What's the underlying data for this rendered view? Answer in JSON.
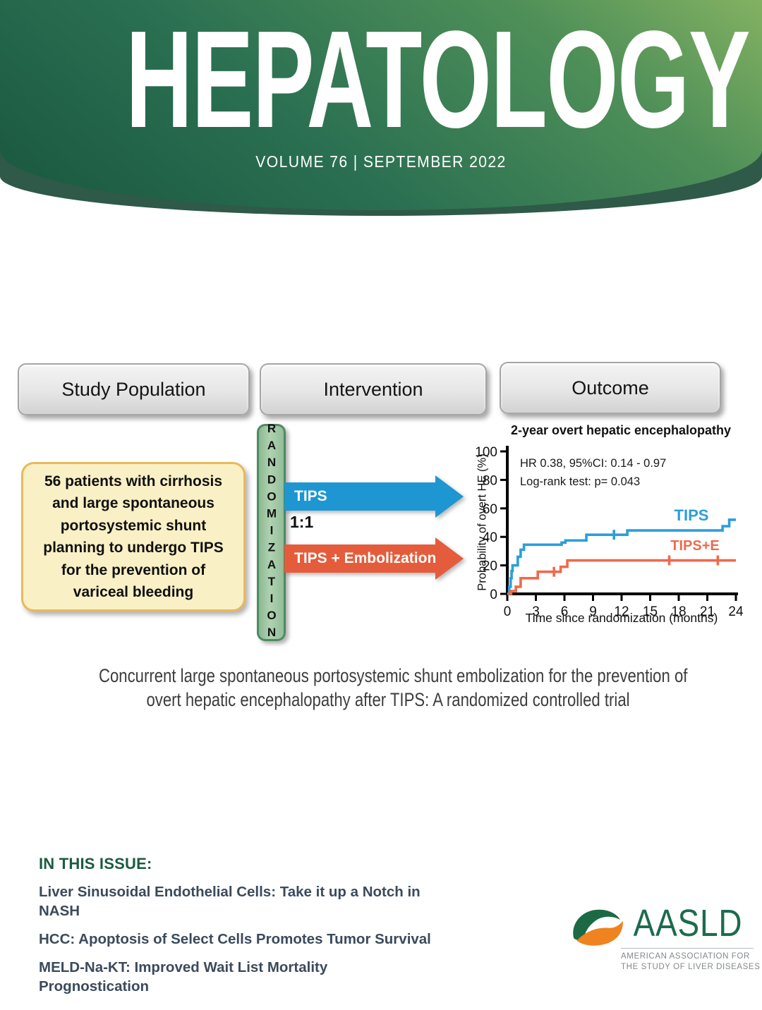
{
  "masthead": {
    "journal_title": "HEPATOLOGY",
    "issue_line": "VOLUME 76  |  SEPTEMBER 2022"
  },
  "graphical_abstract": {
    "columns": [
      "Study Population",
      "Intervention",
      "Outcome"
    ],
    "population_text": "56 patients with cirrhosis and large spontaneous portosystemic shunt planning to undergo TIPS for the prevention of variceal bleeding",
    "randomization_label": "RANDOMIZATION",
    "ratio_label": "1:1",
    "arm1_label": "TIPS",
    "arm2_label": "TIPS + Embolization",
    "colors": {
      "arm1": "#1E96D2",
      "arm2": "#E45C3C",
      "randomization_fill": "#A5C8A5",
      "population_fill": "#FAF0C6",
      "masthead_green_dark": "#19573F",
      "masthead_green_light": "#83B162"
    }
  },
  "chart_data": {
    "type": "line",
    "step": true,
    "title": "2-year overt hepatic encephalopathy",
    "annotation_lines": [
      "HR 0.38, 95%CI: 0.14 - 0.97",
      "Log-rank test: p= 0.043"
    ],
    "xlabel": "Time since randomization (months)",
    "ylabel": "Probability of overt HE (%)",
    "xlim": [
      0,
      24
    ],
    "ylim": [
      0,
      100
    ],
    "xticks": [
      0,
      3,
      6,
      9,
      12,
      15,
      18,
      21,
      24
    ],
    "yticks": [
      0,
      20,
      40,
      60,
      80,
      100
    ],
    "grid": false,
    "series": [
      {
        "name": "TIPS",
        "color": "#2B9FD9",
        "points": [
          [
            0,
            0
          ],
          [
            0.2,
            5
          ],
          [
            0.35,
            11
          ],
          [
            0.45,
            16
          ],
          [
            0.55,
            20
          ],
          [
            1.1,
            26
          ],
          [
            1.4,
            31
          ],
          [
            1.75,
            34.5
          ],
          [
            5.7,
            36
          ],
          [
            6.1,
            37.5
          ],
          [
            8.3,
            41.5
          ],
          [
            12.6,
            44.5
          ],
          [
            22.6,
            47.5
          ],
          [
            23.3,
            52
          ],
          [
            24,
            52
          ]
        ],
        "censor_marks": [
          [
            11.2,
            41.5
          ]
        ]
      },
      {
        "name": "TIPS+E",
        "color": "#EE6A4D",
        "points": [
          [
            0,
            0
          ],
          [
            0.4,
            2
          ],
          [
            0.9,
            5
          ],
          [
            1.4,
            11
          ],
          [
            3.2,
            15.5
          ],
          [
            5.6,
            19
          ],
          [
            6.3,
            23.5
          ],
          [
            24,
            23.5
          ]
        ],
        "censor_marks": [
          [
            4.9,
            15.5
          ],
          [
            17,
            23.5
          ],
          [
            22.1,
            23.5
          ]
        ]
      }
    ]
  },
  "article_title": {
    "lines": [
      "Concurrent large spontaneous portosystemic shunt embolization for the prevention of",
      "overt hepatic encephalopathy after TIPS: A randomized controlled trial"
    ]
  },
  "in_this_issue": {
    "heading": "IN THIS ISSUE:",
    "items": [
      "Liver Sinusoidal Endothelial Cells: Take it up a Notch in NASH",
      "HCC: Apoptosis of Select Cells Promotes Tumor Survival",
      "MELD-Na-KT: Improved Wait List Mortality Prognostication"
    ]
  },
  "publisher": {
    "wordmark": "AASLD",
    "tagline_lines": [
      "AMERICAN ASSOCIATION FOR",
      "THE STUDY OF LIVER DISEASES"
    ],
    "colors": {
      "green": "#1D6B4D",
      "orange": "#EF8320"
    }
  }
}
